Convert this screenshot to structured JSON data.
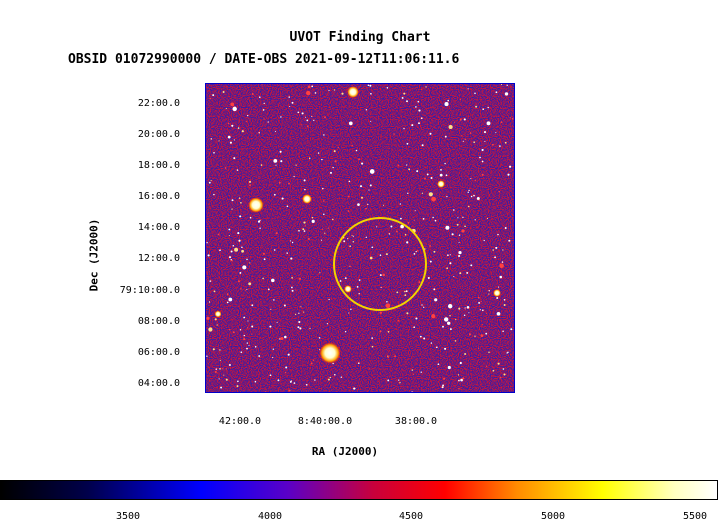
{
  "header": {
    "title": "UVOT Finding Chart",
    "subtitle": "OBSID 01072990000 / DATE-OBS 2021-09-12T11:06:11.6"
  },
  "axes": {
    "xlabel": "RA (J2000)",
    "ylabel": "Dec (J2000)",
    "y_ticks": [
      "22:00.0",
      "20:00.0",
      "18:00.0",
      "16:00.0",
      "14:00.0",
      "12:00.0",
      "79:10:00.0",
      "08:00.0",
      "06:00.0",
      "04:00.0"
    ],
    "x_ticks": [
      "42:00.0",
      "8:40:00.0",
      "38:00.0"
    ]
  },
  "colorbar": {
    "ticks": [
      "3500",
      "4000",
      "4500",
      "5000",
      "5500"
    ]
  },
  "colors": {
    "image_background": "#1f1aa0",
    "circle": "#f2d400"
  }
}
